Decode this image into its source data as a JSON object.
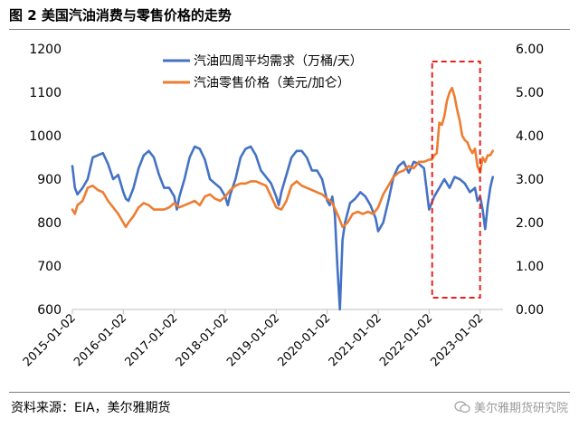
{
  "figure_title": "图 2 美国汽油消费与零售价格的走势",
  "source_note": "资料来源：EIA，美尔雅期货",
  "watermark": "美尔雅期货研究院",
  "chart_data": {
    "type": "line",
    "xlabel": "",
    "ylabel_left": "",
    "ylabel_right": "",
    "left_axis": {
      "min": 600,
      "max": 1200,
      "step": 100,
      "ticks": [
        "600",
        "700",
        "800",
        "900",
        "1000",
        "1100",
        "1200"
      ]
    },
    "right_axis": {
      "min": 0,
      "max": 6,
      "step": 1,
      "ticks": [
        "0.00",
        "1.00",
        "2.00",
        "3.00",
        "4.00",
        "5.00",
        "6.00"
      ]
    },
    "x_tick_labels": [
      "2015-01-02",
      "2016-01-02",
      "2017-01-02",
      "2018-01-02",
      "2019-01-02",
      "2020-01-02",
      "2021-01-02",
      "2022-01-02",
      "2023-01-02"
    ],
    "legend_position": "top-center",
    "grid": false,
    "highlight_box": {
      "x_start": 2022.06,
      "x_end": 2023.0,
      "style": "red-dashed"
    },
    "series": [
      {
        "name": "汽油四周平均需求（万桶/天）",
        "axis": "left",
        "color": "#4472C4",
        "x": [
          2015.0,
          2015.05,
          2015.1,
          2015.2,
          2015.3,
          2015.4,
          2015.5,
          2015.6,
          2015.7,
          2015.8,
          2015.9,
          2016.0,
          2016.05,
          2016.1,
          2016.2,
          2016.3,
          2016.4,
          2016.5,
          2016.6,
          2016.7,
          2016.8,
          2016.9,
          2017.0,
          2017.05,
          2017.1,
          2017.2,
          2017.3,
          2017.4,
          2017.5,
          2017.6,
          2017.7,
          2017.8,
          2017.9,
          2018.0,
          2018.05,
          2018.1,
          2018.2,
          2018.3,
          2018.4,
          2018.5,
          2018.6,
          2018.7,
          2018.8,
          2018.9,
          2019.0,
          2019.05,
          2019.1,
          2019.2,
          2019.3,
          2019.4,
          2019.5,
          2019.6,
          2019.7,
          2019.8,
          2019.9,
          2020.0,
          2020.05,
          2020.1,
          2020.15,
          2020.2,
          2020.25,
          2020.3,
          2020.35,
          2020.45,
          2020.55,
          2020.65,
          2020.75,
          2020.85,
          2020.95,
          2021.0,
          2021.05,
          2021.1,
          2021.2,
          2021.3,
          2021.4,
          2021.5,
          2021.6,
          2021.7,
          2021.8,
          2021.9,
          2022.0,
          2022.05,
          2022.1,
          2022.2,
          2022.3,
          2022.4,
          2022.5,
          2022.6,
          2022.7,
          2022.8,
          2022.9,
          2022.95,
          2023.0,
          2023.05,
          2023.1,
          2023.15,
          2023.2,
          2023.25
        ],
        "values": [
          930,
          880,
          865,
          880,
          900,
          950,
          955,
          960,
          935,
          900,
          910,
          870,
          855,
          850,
          880,
          925,
          955,
          965,
          950,
          910,
          880,
          880,
          860,
          830,
          860,
          900,
          950,
          975,
          970,
          945,
          900,
          890,
          880,
          860,
          840,
          865,
          900,
          950,
          970,
          975,
          955,
          920,
          905,
          890,
          860,
          840,
          870,
          910,
          950,
          965,
          965,
          950,
          920,
          920,
          900,
          850,
          840,
          860,
          820,
          700,
          600,
          760,
          800,
          845,
          855,
          870,
          860,
          840,
          810,
          780,
          790,
          800,
          850,
          905,
          930,
          940,
          915,
          940,
          935,
          925,
          830,
          845,
          860,
          880,
          900,
          880,
          905,
          900,
          890,
          870,
          880,
          850,
          860,
          830,
          785,
          840,
          880,
          905
        ]
      },
      {
        "name": "汽油零售价格（美元/加仑）",
        "axis": "right",
        "color": "#ED7D31",
        "x": [
          2015.0,
          2015.05,
          2015.1,
          2015.2,
          2015.3,
          2015.4,
          2015.5,
          2015.6,
          2015.7,
          2015.8,
          2015.9,
          2016.0,
          2016.05,
          2016.1,
          2016.2,
          2016.3,
          2016.4,
          2016.5,
          2016.6,
          2016.7,
          2016.8,
          2016.9,
          2017.0,
          2017.1,
          2017.2,
          2017.3,
          2017.4,
          2017.5,
          2017.6,
          2017.7,
          2017.8,
          2017.9,
          2018.0,
          2018.1,
          2018.2,
          2018.3,
          2018.4,
          2018.5,
          2018.6,
          2018.7,
          2018.8,
          2018.9,
          2019.0,
          2019.1,
          2019.2,
          2019.3,
          2019.4,
          2019.5,
          2019.6,
          2019.7,
          2019.8,
          2019.9,
          2020.0,
          2020.1,
          2020.2,
          2020.3,
          2020.4,
          2020.5,
          2020.6,
          2020.7,
          2020.8,
          2020.9,
          2021.0,
          2021.1,
          2021.2,
          2021.3,
          2021.4,
          2021.5,
          2021.6,
          2021.7,
          2021.8,
          2021.9,
          2022.0,
          2022.05,
          2022.1,
          2022.15,
          2022.2,
          2022.25,
          2022.3,
          2022.35,
          2022.4,
          2022.45,
          2022.5,
          2022.55,
          2022.6,
          2022.65,
          2022.7,
          2022.75,
          2022.8,
          2022.85,
          2022.9,
          2022.95,
          2023.0,
          2023.05,
          2023.1,
          2023.15,
          2023.2,
          2023.25
        ],
        "values": [
          2.3,
          2.2,
          2.4,
          2.5,
          2.8,
          2.85,
          2.75,
          2.7,
          2.5,
          2.35,
          2.2,
          2.0,
          1.9,
          2.0,
          2.15,
          2.35,
          2.45,
          2.4,
          2.3,
          2.3,
          2.3,
          2.35,
          2.45,
          2.35,
          2.4,
          2.45,
          2.5,
          2.4,
          2.6,
          2.65,
          2.55,
          2.5,
          2.6,
          2.75,
          2.85,
          2.9,
          2.9,
          2.95,
          2.95,
          2.9,
          2.85,
          2.6,
          2.35,
          2.3,
          2.5,
          2.85,
          2.95,
          2.85,
          2.8,
          2.75,
          2.7,
          2.65,
          2.55,
          2.45,
          2.2,
          1.9,
          2.0,
          2.2,
          2.25,
          2.2,
          2.25,
          2.2,
          2.35,
          2.65,
          2.85,
          3.05,
          3.15,
          3.2,
          3.3,
          3.25,
          3.4,
          3.4,
          3.45,
          3.45,
          3.55,
          3.6,
          4.3,
          4.25,
          4.45,
          4.8,
          5.0,
          5.1,
          4.9,
          4.6,
          4.35,
          4.0,
          3.9,
          3.85,
          3.7,
          3.6,
          3.7,
          3.3,
          3.15,
          3.5,
          3.4,
          3.55,
          3.55,
          3.65
        ]
      }
    ]
  }
}
